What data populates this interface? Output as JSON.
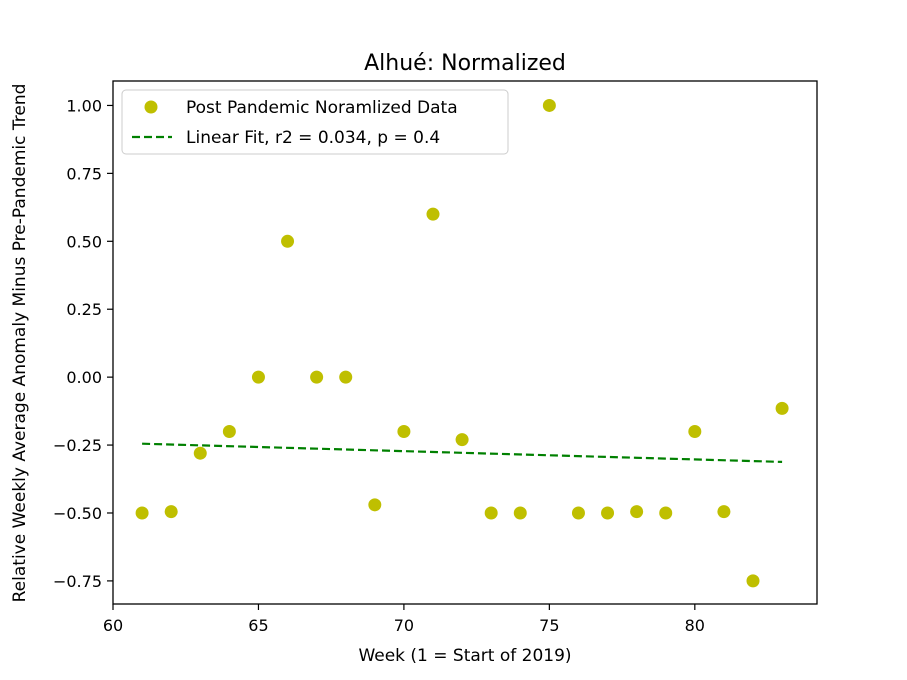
{
  "chart_data": {
    "type": "scatter",
    "title": "Alhué: Normalized",
    "xlabel": "Week (1 = Start of 2019)",
    "ylabel": "Relative Weekly Average Anomaly Minus Pre-Pandemic Trend",
    "xlim": [
      60.0,
      84.2
    ],
    "ylim": [
      -0.835,
      1.09
    ],
    "xticks": [
      60,
      65,
      70,
      75,
      80
    ],
    "yticks": [
      -0.75,
      -0.5,
      -0.25,
      0.0,
      0.25,
      0.5,
      0.75,
      1.0
    ],
    "xtick_labels": [
      "60",
      "65",
      "70",
      "75",
      "80"
    ],
    "ytick_labels": [
      "−0.75",
      "−0.50",
      "−0.25",
      "0.00",
      "0.25",
      "0.50",
      "0.75",
      "1.00"
    ],
    "grid": false,
    "legend_position": "top-left",
    "series": [
      {
        "name": "Post Pandemic Noramlized Data",
        "kind": "scatter",
        "color": "#bfbf00",
        "points": [
          [
            61,
            -0.5
          ],
          [
            62,
            -0.495
          ],
          [
            63,
            -0.28
          ],
          [
            64,
            -0.2
          ],
          [
            65,
            0.0
          ],
          [
            66,
            0.5
          ],
          [
            67,
            0.0
          ],
          [
            68,
            0.0
          ],
          [
            69,
            -0.47
          ],
          [
            70,
            -0.2
          ],
          [
            71,
            0.6
          ],
          [
            72,
            -0.23
          ],
          [
            73,
            -0.5
          ],
          [
            74,
            -0.5
          ],
          [
            75,
            1.0
          ],
          [
            76,
            -0.5
          ],
          [
            77,
            -0.5
          ],
          [
            78,
            -0.495
          ],
          [
            79,
            -0.5
          ],
          [
            80,
            -0.2
          ],
          [
            81,
            -0.495
          ],
          [
            82,
            -0.75
          ],
          [
            83,
            -0.115
          ]
        ]
      },
      {
        "name": "Linear Fit, r2 = 0.034, p = 0.4",
        "kind": "line",
        "style": "dashed",
        "color": "#008000",
        "points": [
          [
            61,
            -0.245
          ],
          [
            83,
            -0.312
          ]
        ]
      }
    ]
  }
}
